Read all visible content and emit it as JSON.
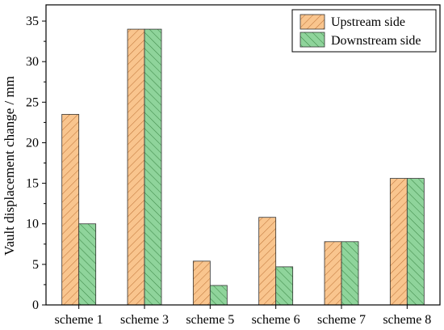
{
  "chart_data": {
    "type": "bar",
    "categories": [
      "scheme 1",
      "scheme 3",
      "scheme 5",
      "scheme 6",
      "scheme 7",
      "scheme 8"
    ],
    "series": [
      {
        "name": "Upstream side",
        "values": [
          23.5,
          34.0,
          5.4,
          10.8,
          7.8,
          15.6
        ],
        "color": "#F9C58E",
        "hatch": "#C0763A"
      },
      {
        "name": "Downstream side",
        "values": [
          10.0,
          34.0,
          2.4,
          4.7,
          7.8,
          15.6
        ],
        "color": "#8FD49B",
        "hatch": "#3E8A48"
      }
    ],
    "title": "",
    "xlabel": "",
    "ylabel": "Vault displacement change / mm",
    "ylim": [
      0,
      37
    ],
    "yticks": [
      0,
      5,
      10,
      15,
      20,
      25,
      30,
      35
    ],
    "grid": false,
    "legend_position": "top-right"
  }
}
